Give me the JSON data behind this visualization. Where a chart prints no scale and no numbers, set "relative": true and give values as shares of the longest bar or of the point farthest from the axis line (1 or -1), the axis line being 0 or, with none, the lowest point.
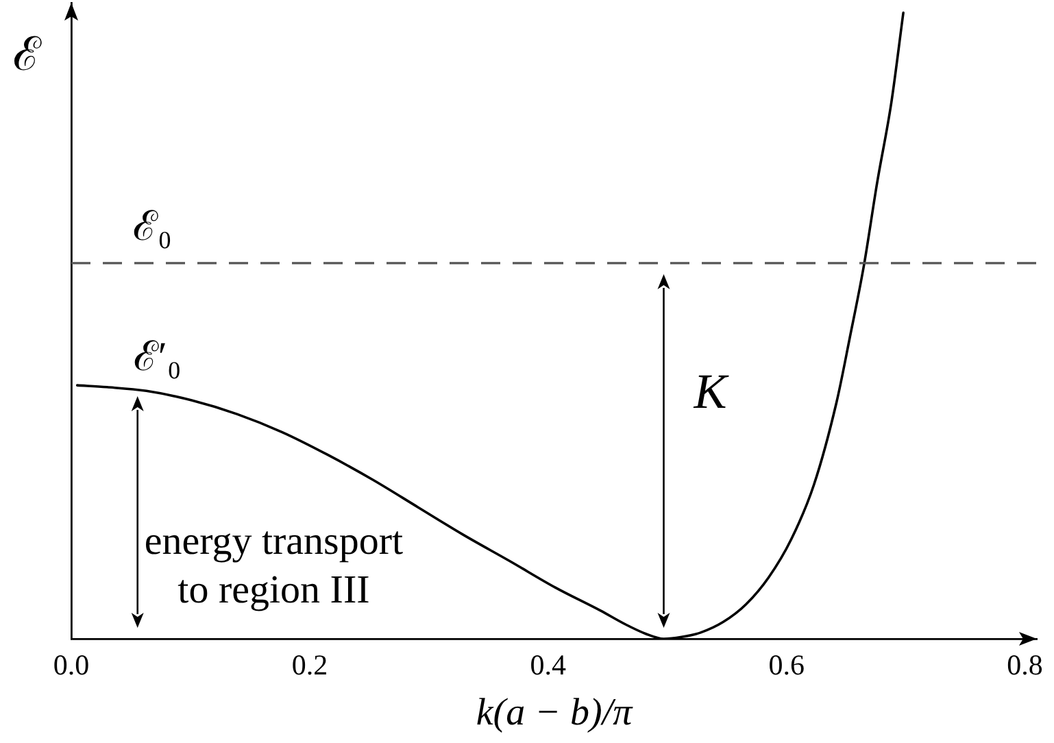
{
  "chart_data": {
    "type": "line",
    "relative": true,
    "xlabel": "k(a − b)/π",
    "ylabel": "ℰ",
    "tick_labels": "x",
    "marker": "none",
    "x": [
      0.005,
      0.03,
      0.063,
      0.101,
      0.139,
      0.177,
      0.215,
      0.253,
      0.291,
      0.329,
      0.368,
      0.406,
      0.444,
      0.465,
      0.482,
      0.497,
      0.512,
      0.528,
      0.547,
      0.566,
      0.585,
      0.604,
      0.623,
      0.642,
      0.653,
      0.665,
      0.676,
      0.688,
      0.698
    ],
    "series": [
      {
        "color": "#000000",
        "values": [
          0.405,
          0.402,
          0.396,
          0.381,
          0.359,
          0.33,
          0.294,
          0.254,
          0.21,
          0.166,
          0.124,
          0.082,
          0.045,
          0.023,
          0.008,
          0,
          0.003,
          0.01,
          0.027,
          0.055,
          0.098,
          0.159,
          0.246,
          0.378,
          0.48,
          0.597,
          0.728,
          0.857,
          1
        ]
      }
    ],
    "xlim": [
      0,
      0.81
    ],
    "xticks": [
      {
        "value": 0,
        "label": "0.0"
      },
      0.2,
      0.4,
      0.6,
      0.8
    ],
    "ref_lines": [
      {
        "axis": "y",
        "value": 0.6,
        "label": "ℰ₀",
        "color": "#555555",
        "line_style": "dashed"
      }
    ],
    "annotations": [
      {
        "text": "ℰ′₀",
        "x": 0.005,
        "y": 0.405
      },
      "K",
      "energy transport\nto region III"
    ]
  }
}
